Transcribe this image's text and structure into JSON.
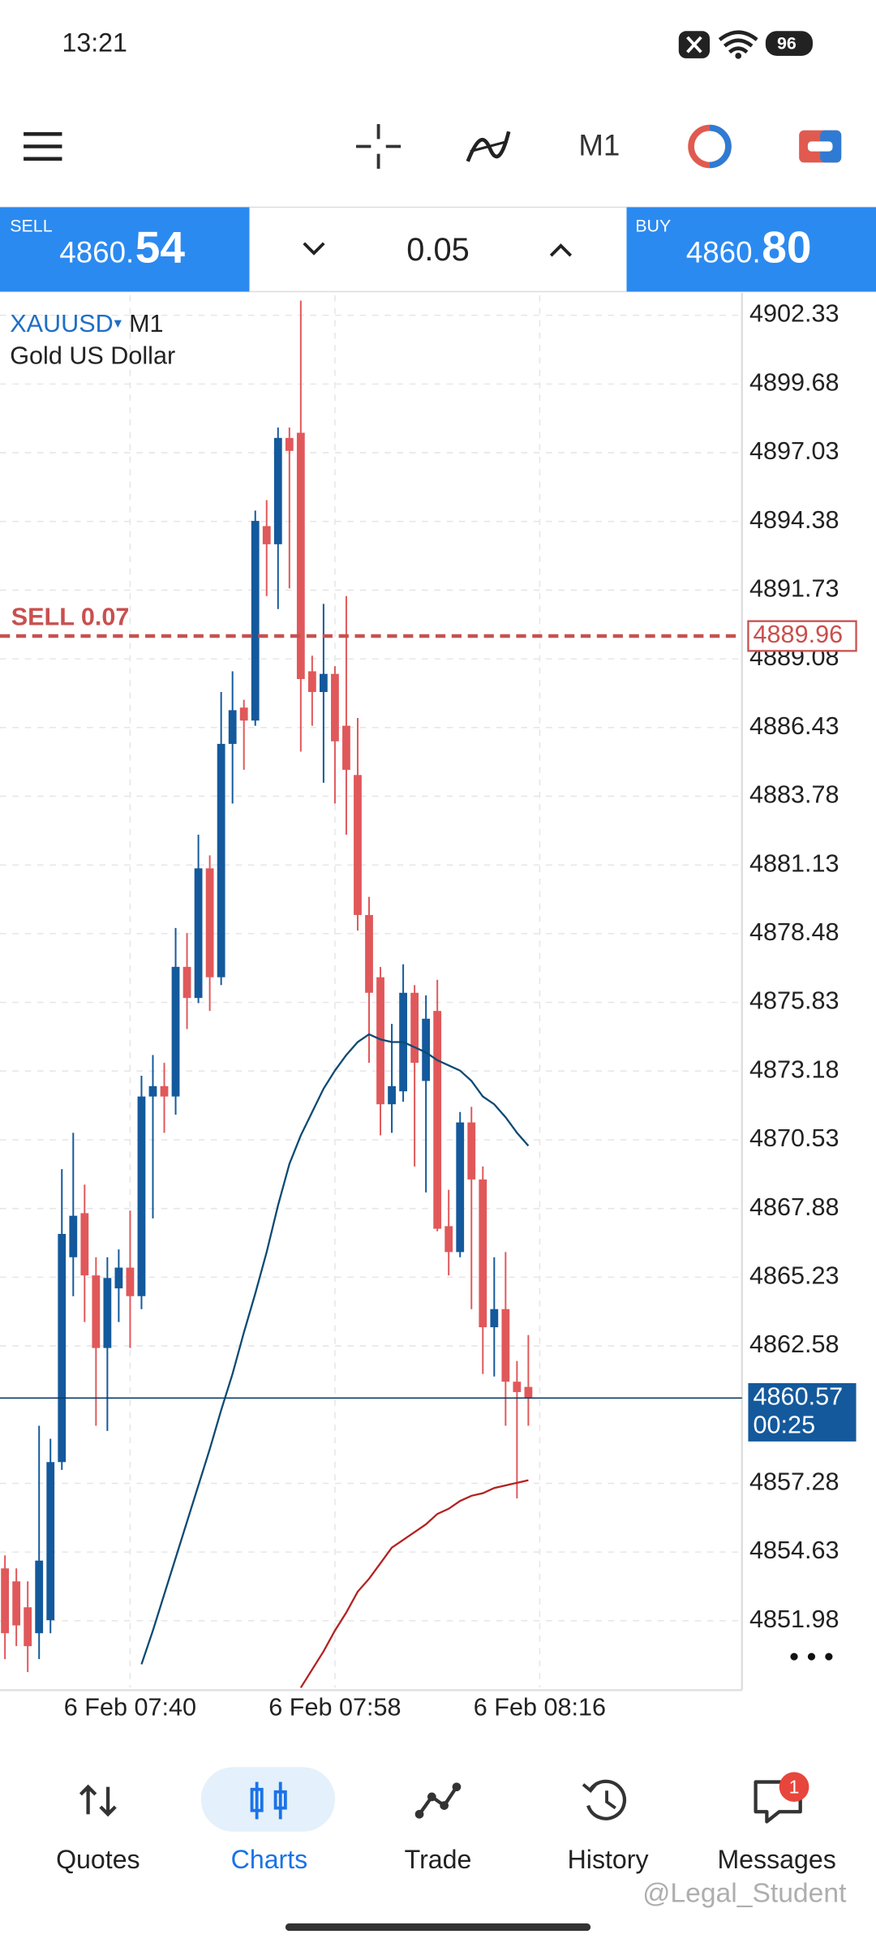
{
  "status_bar": {
    "time": "13:21",
    "battery": "96"
  },
  "toolbar": {
    "timeframe": "M1"
  },
  "trade_panel": {
    "sell_label": "SELL",
    "sell_price_main": "4860.",
    "sell_price_big": "54",
    "lot": "0.05",
    "buy_label": "BUY",
    "buy_price_main": "4860.",
    "buy_price_big": "80"
  },
  "chart_data": {
    "type": "candlestick",
    "symbol": "XAUUSD",
    "timeframe": "M1",
    "description": "Gold US Dollar",
    "up_color": "#14599c",
    "down_color": "#e0585a",
    "ylim": [
      4849.4,
      4903.1
    ],
    "yticks": [
      4902.33,
      4899.68,
      4897.03,
      4894.38,
      4891.73,
      4889.08,
      4886.43,
      4883.78,
      4881.13,
      4878.48,
      4875.83,
      4873.18,
      4870.53,
      4867.88,
      4865.23,
      4862.58,
      4857.28,
      4854.63,
      4851.98
    ],
    "xticks": [
      {
        "value": 11,
        "label": "6 Feb 07:40"
      },
      {
        "value": 29,
        "label": "6 Feb 07:58"
      },
      {
        "value": 47,
        "label": "6 Feb 08:16"
      }
    ],
    "grid": true,
    "candles": [
      {
        "open": 4854.0,
        "high": 4854.5,
        "low": 4850.5,
        "close": 4851.5
      },
      {
        "open": 4853.5,
        "high": 4854.0,
        "low": 4851.0,
        "close": 4851.8
      },
      {
        "open": 4852.5,
        "high": 4853.5,
        "low": 4850.0,
        "close": 4851.0
      },
      {
        "open": 4851.5,
        "high": 4859.5,
        "low": 4850.5,
        "close": 4854.3
      },
      {
        "open": 4852.0,
        "high": 4859.0,
        "low": 4851.5,
        "close": 4858.1
      },
      {
        "open": 4858.1,
        "high": 4869.4,
        "low": 4857.8,
        "close": 4866.9
      },
      {
        "open": 4866.0,
        "high": 4870.8,
        "low": 4864.5,
        "close": 4867.6
      },
      {
        "open": 4867.7,
        "high": 4868.8,
        "low": 4863.5,
        "close": 4865.3
      },
      {
        "open": 4865.3,
        "high": 4866.0,
        "low": 4859.5,
        "close": 4862.5
      },
      {
        "open": 4862.5,
        "high": 4866.0,
        "low": 4859.3,
        "close": 4865.2
      },
      {
        "open": 4864.8,
        "high": 4866.3,
        "low": 4863.5,
        "close": 4865.6
      },
      {
        "open": 4865.6,
        "high": 4867.8,
        "low": 4862.5,
        "close": 4864.5
      },
      {
        "open": 4864.5,
        "high": 4873.0,
        "low": 4864.0,
        "close": 4872.2
      },
      {
        "open": 4872.2,
        "high": 4873.8,
        "low": 4867.5,
        "close": 4872.6
      },
      {
        "open": 4872.6,
        "high": 4873.5,
        "low": 4870.8,
        "close": 4872.2
      },
      {
        "open": 4872.2,
        "high": 4878.7,
        "low": 4871.5,
        "close": 4877.2
      },
      {
        "open": 4877.2,
        "high": 4878.5,
        "low": 4874.8,
        "close": 4876.0
      },
      {
        "open": 4876.0,
        "high": 4882.3,
        "low": 4875.8,
        "close": 4881.0
      },
      {
        "open": 4881.0,
        "high": 4881.5,
        "low": 4875.5,
        "close": 4876.8
      },
      {
        "open": 4876.8,
        "high": 4887.8,
        "low": 4876.5,
        "close": 4885.8
      },
      {
        "open": 4885.8,
        "high": 4888.6,
        "low": 4883.5,
        "close": 4887.1
      },
      {
        "open": 4887.2,
        "high": 4887.5,
        "low": 4884.8,
        "close": 4886.7
      },
      {
        "open": 4886.7,
        "high": 4894.8,
        "low": 4886.5,
        "close": 4894.4
      },
      {
        "open": 4894.2,
        "high": 4895.2,
        "low": 4891.5,
        "close": 4893.5
      },
      {
        "open": 4893.5,
        "high": 4898.0,
        "low": 4891.0,
        "close": 4897.6
      },
      {
        "open": 4897.6,
        "high": 4898.0,
        "low": 4891.8,
        "close": 4897.1
      },
      {
        "open": 4897.8,
        "high": 4902.9,
        "low": 4885.5,
        "close": 4888.3
      },
      {
        "open": 4888.6,
        "high": 4889.2,
        "low": 4886.5,
        "close": 4887.8
      },
      {
        "open": 4887.8,
        "high": 4891.2,
        "low": 4884.3,
        "close": 4888.5
      },
      {
        "open": 4888.5,
        "high": 4888.8,
        "low": 4883.5,
        "close": 4885.9
      },
      {
        "open": 4886.5,
        "high": 4891.5,
        "low": 4882.3,
        "close": 4884.8
      },
      {
        "open": 4884.6,
        "high": 4886.8,
        "low": 4878.6,
        "close": 4879.2
      },
      {
        "open": 4879.2,
        "high": 4879.9,
        "low": 4873.5,
        "close": 4876.2
      },
      {
        "open": 4876.8,
        "high": 4877.2,
        "low": 4870.7,
        "close": 4871.9
      },
      {
        "open": 4871.9,
        "high": 4875.0,
        "low": 4870.8,
        "close": 4872.6
      },
      {
        "open": 4872.4,
        "high": 4877.3,
        "low": 4872.0,
        "close": 4876.2
      },
      {
        "open": 4876.2,
        "high": 4876.5,
        "low": 4869.5,
        "close": 4873.5
      },
      {
        "open": 4872.8,
        "high": 4876.1,
        "low": 4868.5,
        "close": 4875.2
      },
      {
        "open": 4875.5,
        "high": 4876.7,
        "low": 4867.0,
        "close": 4867.1
      },
      {
        "open": 4867.2,
        "high": 4868.6,
        "low": 4865.3,
        "close": 4866.2
      },
      {
        "open": 4866.2,
        "high": 4871.6,
        "low": 4866.0,
        "close": 4871.2
      },
      {
        "open": 4871.2,
        "high": 4871.8,
        "low": 4864.0,
        "close": 4869.0
      },
      {
        "open": 4869.0,
        "high": 4869.5,
        "low": 4861.5,
        "close": 4863.3
      },
      {
        "open": 4863.3,
        "high": 4866.0,
        "low": 4861.4,
        "close": 4864.0
      },
      {
        "open": 4864.0,
        "high": 4866.2,
        "low": 4859.5,
        "close": 4861.2
      },
      {
        "open": 4861.2,
        "high": 4862.0,
        "low": 4856.7,
        "close": 4860.8
      },
      {
        "open": 4861.0,
        "high": 4863.0,
        "low": 4859.5,
        "close": 4860.57
      }
    ],
    "indicators": [
      {
        "color": "#0d4a73",
        "values": [
          null,
          null,
          null,
          null,
          null,
          null,
          null,
          null,
          null,
          null,
          null,
          null,
          4850.3,
          4851.6,
          4853.0,
          4854.4,
          4855.8,
          4857.2,
          4858.6,
          4860.1,
          4861.5,
          4863.1,
          4864.6,
          4866.2,
          4868.0,
          4869.6,
          4870.7,
          4871.6,
          4872.5,
          4873.2,
          4873.8,
          4874.3,
          4874.6,
          4874.4,
          4874.3,
          4874.3,
          4874.1,
          4873.9,
          4873.6,
          4873.4,
          4873.2,
          4872.8,
          4872.2,
          4871.9,
          4871.4,
          4870.8,
          4870.3
        ]
      },
      {
        "color": "#b22222",
        "values": [
          null,
          null,
          null,
          null,
          null,
          null,
          null,
          null,
          null,
          null,
          null,
          null,
          null,
          null,
          null,
          null,
          null,
          null,
          null,
          null,
          null,
          null,
          null,
          null,
          null,
          null,
          4849.4,
          4850.1,
          4850.8,
          4851.6,
          4852.3,
          4853.1,
          4853.6,
          4854.2,
          4854.8,
          4855.1,
          4855.4,
          4855.7,
          4856.1,
          4856.3,
          4856.6,
          4856.8,
          4856.9,
          4857.1,
          4857.2,
          4857.3,
          4857.4
        ]
      }
    ],
    "order_line": {
      "label": "SELL 0.07",
      "price": 4889.96,
      "color": "#c8504f"
    },
    "bid_line": {
      "price": 4860.57,
      "countdown": "00:25",
      "color": "#14599c"
    }
  },
  "bottom_nav": {
    "items": [
      "Quotes",
      "Charts",
      "Trade",
      "History",
      "Messages"
    ],
    "active": 1,
    "badge": "1"
  },
  "watermark": "@Legal_Student"
}
